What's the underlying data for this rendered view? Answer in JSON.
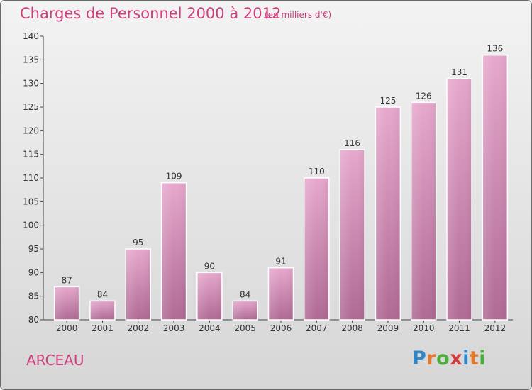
{
  "title": "Charges de Personnel 2000 à 2012",
  "subtitle": "(en milliers d'€)",
  "place": "ARCEAU",
  "logo": {
    "text": "Proxiti",
    "letter_colors": [
      "#2e86c8",
      "#e07a2a",
      "#4caf3c",
      "#d23c3c",
      "#2e86c8",
      "#e07a2a",
      "#4caf3c"
    ]
  },
  "colors": {
    "accent": "#cc3f7d",
    "bar_top": "#e6a8cd",
    "bar_bottom": "#b06a94",
    "axis": "#444444"
  },
  "chart_data": {
    "type": "bar",
    "categories": [
      "2000",
      "2001",
      "2002",
      "2003",
      "2004",
      "2005",
      "2006",
      "2007",
      "2008",
      "2009",
      "2010",
      "2011",
      "2012"
    ],
    "values": [
      87,
      84,
      95,
      109,
      90,
      84,
      91,
      110,
      116,
      125,
      126,
      131,
      136
    ],
    "ylim": [
      80,
      140
    ],
    "yticks": [
      80,
      85,
      90,
      95,
      100,
      105,
      110,
      115,
      120,
      125,
      130,
      135,
      140
    ],
    "grid": false,
    "data_labels": true
  }
}
